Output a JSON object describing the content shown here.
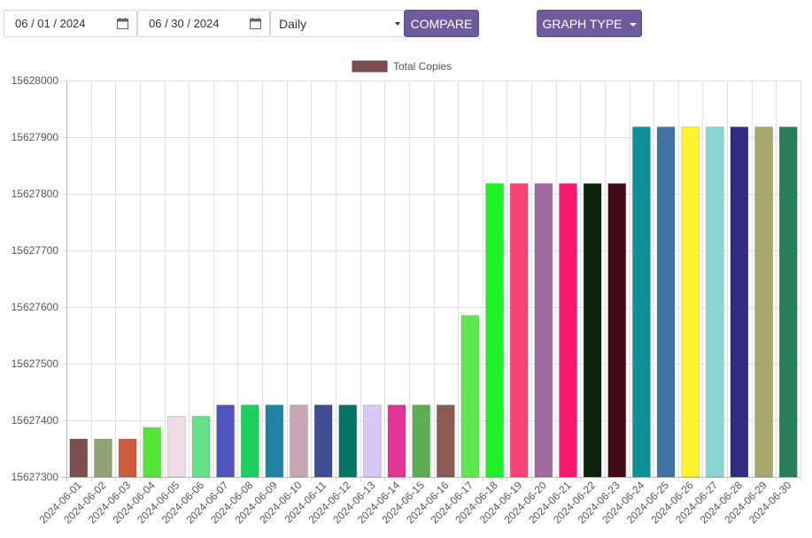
{
  "toolbar": {
    "start_date": "06 / 01 / 2024",
    "end_date": "06 / 30 / 2024",
    "interval": "Daily",
    "compare_label": "COMPARE",
    "graph_type_label": "GRAPH TYPE"
  },
  "chart_data": {
    "type": "bar",
    "legend_position": "top",
    "grid": true,
    "ylim": [
      15627300,
      15628000
    ],
    "yticks": [
      15627300,
      15627400,
      15627500,
      15627600,
      15627700,
      15627800,
      15627900,
      15628000
    ],
    "series": [
      {
        "name": "Total Copies",
        "legend_color": "#7b4f4f",
        "values": [
          15627367,
          15627367,
          15627367,
          15627387,
          15627407,
          15627407,
          15627427,
          15627427,
          15627427,
          15627427,
          15627427,
          15627427,
          15627427,
          15627427,
          15627427,
          15627427,
          15627585,
          15627818,
          15627818,
          15627818,
          15627818,
          15627818,
          15627818,
          15627918,
          15627918,
          15627918,
          15627918,
          15627918,
          15627918,
          15627918
        ]
      }
    ],
    "categories": [
      "2024-06-01",
      "2024-06-02",
      "2024-06-03",
      "2024-06-04",
      "2024-06-05",
      "2024-06-06",
      "2024-06-07",
      "2024-06-08",
      "2024-06-09",
      "2024-06-10",
      "2024-06-11",
      "2024-06-12",
      "2024-06-13",
      "2024-06-14",
      "2024-06-15",
      "2024-06-16",
      "2024-06-17",
      "2024-06-18",
      "2024-06-19",
      "2024-06-20",
      "2024-06-21",
      "2024-06-22",
      "2024-06-23",
      "2024-06-24",
      "2024-06-25",
      "2024-06-26",
      "2024-06-27",
      "2024-06-28",
      "2024-06-29",
      "2024-06-30"
    ],
    "bar_colors": [
      "#7b4f4f",
      "#8fa373",
      "#cd5c3d",
      "#55e43a",
      "#eedde6",
      "#66e084",
      "#4e55bd",
      "#20ce5f",
      "#2084a8",
      "#c8a8b6",
      "#3e4f91",
      "#057563",
      "#d8c8f4",
      "#de3596",
      "#5cae52",
      "#8c5a52",
      "#5ee950",
      "#1ef126",
      "#f84174",
      "#a06b9e",
      "#f9196e",
      "#0c230c",
      "#420a14",
      "#0b9197",
      "#4174a0",
      "#fff334",
      "#8cd6d3",
      "#2e2d7f",
      "#a8a86a",
      "#277e59"
    ]
  }
}
